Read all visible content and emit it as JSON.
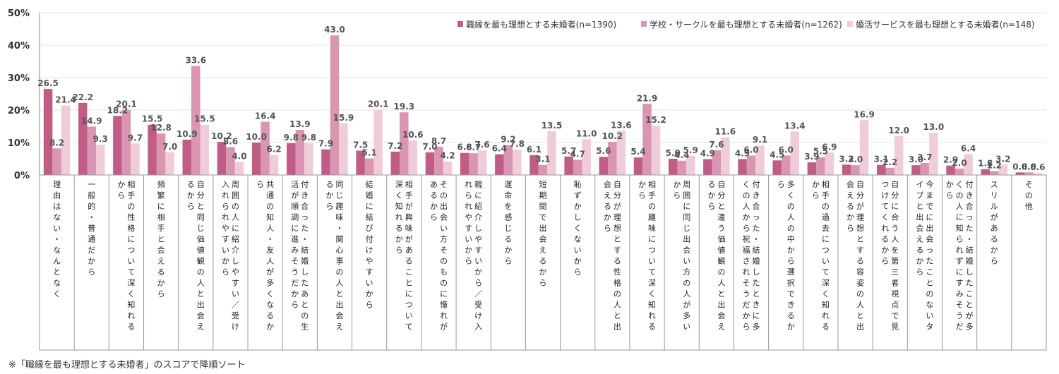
{
  "chart_data": {
    "type": "bar",
    "ylim": [
      0,
      50
    ],
    "yticks": [
      "0%",
      "10%",
      "20%",
      "30%",
      "40%",
      "50%"
    ],
    "colors": [
      "#c05c86",
      "#d995b2",
      "#f0ccda"
    ],
    "series": [
      {
        "name": "職縁を最も理想とする未婚者(n=1390)",
        "values": [
          26.5,
          22.2,
          18.2,
          15.5,
          10.9,
          10.2,
          10.0,
          9.8,
          7.9,
          7.5,
          7.2,
          7.0,
          6.8,
          6.4,
          6.1,
          5.7,
          5.6,
          5.4,
          5.0,
          4.9,
          4.9,
          4.5,
          3.9,
          3.2,
          3.1,
          3.0,
          2.9,
          1.8,
          0.8
        ]
      },
      {
        "name": "学校・サークルを最も理想とする未婚者(n=1262)",
        "values": [
          8.2,
          14.9,
          20.1,
          12.8,
          33.6,
          8.6,
          16.4,
          13.9,
          43.0,
          5.1,
          19.3,
          8.7,
          6.7,
          9.2,
          3.1,
          4.7,
          10.2,
          21.9,
          4.4,
          7.6,
          6.0,
          6.0,
          5.5,
          3.0,
          2.2,
          3.7,
          2.0,
          1.2,
          0.8
        ]
      },
      {
        "name": "婚活サービスを最も理想とする未婚者(n=148)",
        "values": [
          21.4,
          9.3,
          9.7,
          7.0,
          15.5,
          4.0,
          6.2,
          9.8,
          15.9,
          20.1,
          10.6,
          4.2,
          7.6,
          7.8,
          13.5,
          11.0,
          13.6,
          15.2,
          5.9,
          11.6,
          9.1,
          13.4,
          6.9,
          16.9,
          12.0,
          13.0,
          6.4,
          3.2,
          0.6
        ]
      }
    ],
    "labels": [
      [
        "26.5",
        "22.2",
        "18.2",
        "15.5",
        "10.9",
        "10.2",
        "10.0",
        "9.8",
        "7.9",
        "7.5",
        "7.2",
        "7.0",
        "6.8",
        "6.4",
        "6.1",
        "5.7",
        "5.6",
        "5.4",
        "5.0",
        "4.9",
        "4.9",
        "4.5",
        "3.9",
        "3.2",
        "3.1",
        "3.0",
        "2.9",
        "1.8",
        "0.8"
      ],
      [
        "8.2",
        "14.9",
        "20.1",
        "12.8",
        "33.6",
        "8.6",
        "16.4",
        "13.9",
        "43.0",
        "5.1",
        "19.3",
        "8.7",
        "6.7",
        "9.2",
        "3.1",
        "4.7",
        "10.2",
        "21.9",
        "4.4",
        "7.6",
        "6.0",
        "6.0",
        "5.5",
        "3.0",
        "2.2",
        "3.7",
        "2.0",
        "1.2",
        "0.8"
      ],
      [
        "21.4",
        "9.3",
        "9.7",
        "7.0",
        "15.5",
        "4.0",
        "6.2",
        "9.8",
        "15.9",
        "20.1",
        "10.6",
        "4.2",
        "7.6",
        "7.8",
        "13.5",
        "11.0",
        "13.6",
        "15.2",
        "5.9",
        "11.6",
        "9.1",
        "13.4",
        "6.9",
        "16.9",
        "12.0",
        "13.0",
        "6.4",
        "3.2",
        "0.6"
      ]
    ],
    "categories": [
      [
        "理由はない・なんとなく"
      ],
      [
        "一般的・普通だから"
      ],
      [
        "相手の性格について深く知れる",
        "から"
      ],
      [
        "頻繁に相手と会えるから"
      ],
      [
        "自分と同じ価値観の人と出会え",
        "るから"
      ],
      [
        "周囲の人に紹介しやすい／受け",
        "入れられやすいから"
      ],
      [
        "共通の知人・友人が多くなるか",
        "ら"
      ],
      [
        "付き合った・結婚したあとの生",
        "活が順調に進みそうだから"
      ],
      [
        "同じ趣味・関心事の人と出会え",
        "るから"
      ],
      [
        "結婚に結び付けやすいから"
      ],
      [
        "相手が興味があることについて",
        "深く知れるから"
      ],
      [
        "その出会い方そのものに憧れが",
        "あるから"
      ],
      [
        "親に紹介しやすいから／受け入",
        "れられやすいから"
      ],
      [
        "運命を感じるから"
      ],
      [
        "短期間で出会えるから"
      ],
      [
        "恥ずかしくないから"
      ],
      [
        "自分が理想とする性格の人と出",
        "会えるから"
      ],
      [
        "相手の趣味について深く知れる",
        "から"
      ],
      [
        "周囲に同じ出会い方の人が多い",
        "から"
      ],
      [
        "自分と違う価値観の人と出会え",
        "るから"
      ],
      [
        "付き合った・結婚したときに多",
        "くの人から祝福されそうだから"
      ],
      [
        "多くの人の中から選択できるか",
        "ら"
      ],
      [
        "相手の過去について深く知れる",
        "から"
      ],
      [
        "自分が理想とする容姿の人と出",
        "会えるから"
      ],
      [
        "自分に合う人を第三者視点で見",
        "つけてくれるから"
      ],
      [
        "今までに出会ったことのないタ",
        "イプと出会えるから"
      ],
      [
        "付き合った・結婚したことが多",
        "くの人に知られずにすみそうだ",
        "から"
      ],
      [
        "スリルがあるから"
      ],
      [
        "その他"
      ]
    ]
  },
  "footnote": "※「職縁を最も理想とする未婚者」のスコアで降順ソート"
}
